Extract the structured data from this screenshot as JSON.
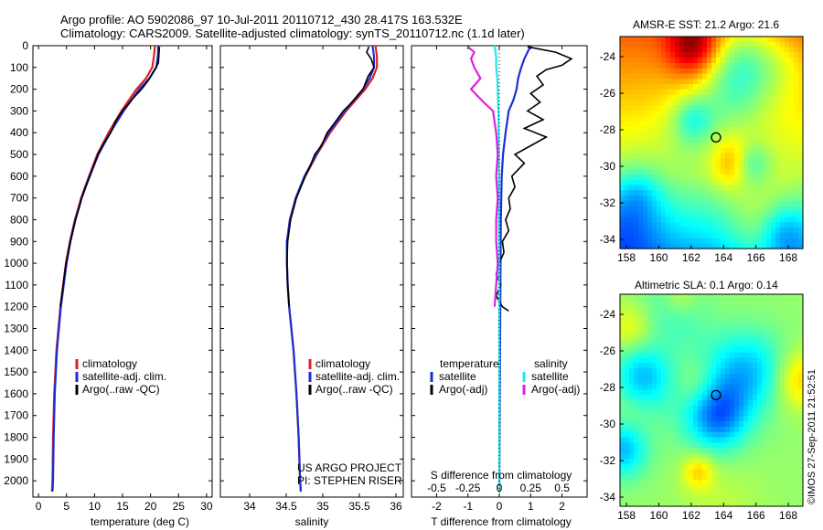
{
  "header": {
    "line1": "Argo profile: AO 5902086_97 10-Jul-2011 20110712_430 28.417S 163.532E",
    "line2": "Climatology: CARS2009. Satellite-adjusted climatology: synTS_20110712.nc (1.1d later)"
  },
  "colors": {
    "climatology": "#e02020",
    "satellite": "#1a2fd8",
    "argo": "#000000",
    "sat_salinity": "#22e6e6",
    "argo_salinity": "#e020e0"
  },
  "chart_data": [
    {
      "type": "line",
      "name": "temperature-profile",
      "xlabel": "temperature (deg C)",
      "ylabel": "",
      "xlim": [
        -1,
        31
      ],
      "ylim": [
        2075,
        0
      ],
      "xticks": [
        0,
        5,
        10,
        15,
        20,
        25,
        30
      ],
      "yticks": [
        0,
        100,
        200,
        300,
        400,
        500,
        600,
        700,
        800,
        900,
        1000,
        1100,
        1200,
        1300,
        1400,
        1500,
        1600,
        1700,
        1800,
        1900,
        2000
      ],
      "legend": [
        "climatology",
        "satellite-adj. clim.",
        "Argo(..raw -QC)"
      ],
      "legend_position": "lower-right",
      "series": [
        {
          "name": "climatology",
          "color_key": "climatology",
          "y": [
            0,
            50,
            100,
            150,
            200,
            300,
            400,
            500,
            600,
            700,
            800,
            900,
            1000,
            1200,
            1400,
            1600,
            1800,
            2000,
            2050
          ],
          "x": [
            20.8,
            20.6,
            20.3,
            19.2,
            17.5,
            14.8,
            12.5,
            10.5,
            9.0,
            7.6,
            6.5,
            5.6,
            4.9,
            3.9,
            3.2,
            2.8,
            2.6,
            2.5,
            2.4
          ]
        },
        {
          "name": "satellite-adj. clim.",
          "color_key": "satellite",
          "y": [
            0,
            50,
            100,
            150,
            200,
            300,
            400,
            500,
            600,
            700,
            800,
            900,
            1000,
            1200,
            1400,
            1600,
            1800,
            2000,
            2050
          ],
          "x": [
            21.4,
            21.3,
            21.0,
            19.8,
            18.0,
            15.2,
            12.8,
            10.7,
            9.1,
            7.7,
            6.6,
            5.7,
            5.0,
            4.0,
            3.3,
            2.9,
            2.7,
            2.6,
            2.5
          ]
        },
        {
          "name": "Argo(..raw -QC)",
          "color_key": "argo",
          "y": [
            5,
            40,
            80,
            120,
            160,
            200,
            250,
            300,
            350,
            400,
            450,
            500,
            550,
            600,
            650,
            700,
            750,
            800,
            900,
            1000,
            1100,
            1200
          ],
          "x": [
            21.6,
            21.5,
            21.4,
            20.5,
            19.6,
            18.4,
            16.6,
            15.0,
            13.7,
            12.9,
            11.6,
            10.6,
            9.9,
            9.2,
            8.4,
            7.7,
            7.2,
            6.6,
            5.7,
            4.9,
            4.4,
            3.9
          ]
        }
      ]
    },
    {
      "type": "line",
      "name": "salinity-profile",
      "xlabel": "salinity",
      "ylabel": "",
      "xlim": [
        33.6,
        36.1
      ],
      "ylim": [
        2075,
        0
      ],
      "xticks": [
        34,
        34.5,
        35,
        35.5,
        36
      ],
      "legend": [
        "climatology",
        "satellite-adj. clim.",
        "Argo(..raw -QC)"
      ],
      "legend_position": "lower-right",
      "annotation": [
        "US ARGO PROJECT",
        "PI: STEPHEN RISER"
      ],
      "series": [
        {
          "name": "climatology",
          "color_key": "climatology",
          "y": [
            0,
            50,
            100,
            150,
            200,
            300,
            400,
            500,
            600,
            700,
            800,
            900,
            1000,
            1100,
            1200,
            1300,
            1400,
            1600,
            1800,
            2000,
            2050
          ],
          "x": [
            35.72,
            35.74,
            35.74,
            35.68,
            35.58,
            35.32,
            35.1,
            34.92,
            34.76,
            34.63,
            34.55,
            34.51,
            34.51,
            34.52,
            34.54,
            34.57,
            34.6,
            34.64,
            34.67,
            34.69,
            34.7
          ]
        },
        {
          "name": "satellite-adj. clim.",
          "color_key": "satellite",
          "y": [
            0,
            50,
            100,
            150,
            200,
            300,
            400,
            500,
            600,
            700,
            800,
            900,
            1000,
            1100,
            1200,
            1300,
            1400,
            1600,
            1800,
            2000,
            2050
          ],
          "x": [
            35.68,
            35.7,
            35.7,
            35.64,
            35.55,
            35.3,
            35.08,
            34.91,
            34.75,
            34.63,
            34.55,
            34.51,
            34.51,
            34.52,
            34.54,
            34.57,
            34.6,
            34.64,
            34.67,
            34.69,
            34.7
          ]
        },
        {
          "name": "Argo(..raw -QC)",
          "color_key": "argo",
          "y": [
            5,
            30,
            60,
            100,
            140,
            200,
            260,
            300,
            360,
            400,
            460,
            500,
            560,
            600,
            650,
            700,
            800,
            900,
            1000,
            1100,
            1200
          ],
          "x": [
            35.63,
            35.6,
            35.66,
            35.7,
            35.62,
            35.55,
            35.4,
            35.28,
            35.15,
            35.06,
            34.98,
            34.89,
            34.82,
            34.76,
            34.7,
            34.64,
            34.56,
            34.52,
            34.51,
            34.52,
            34.54
          ]
        }
      ]
    },
    {
      "type": "line",
      "name": "difference-profile",
      "xlabel": "T difference from climatology",
      "xlabel2": "S difference from climatology",
      "xlim": [
        -2.8,
        2.8
      ],
      "ylim": [
        2075,
        0
      ],
      "xticks": [
        -2,
        -1,
        0,
        1,
        2
      ],
      "xticks2_labels": [
        "-0.5",
        "-0.25",
        "0",
        "0.25",
        "0.5"
      ],
      "xticks2_positions": [
        -2,
        -1,
        0,
        1,
        2
      ],
      "legend_headers": [
        "temperature",
        "salinity"
      ],
      "legend": [
        "satellite",
        "Argo(-adj)",
        "satellite",
        "Argo(-adj)"
      ],
      "series": [
        {
          "name": "temperature satellite",
          "color_key": "satellite",
          "y": [
            0,
            30,
            60,
            100,
            150,
            200,
            250,
            300,
            400,
            500,
            600,
            800,
            1000,
            1500,
            2050
          ],
          "x": [
            1.0,
            0.9,
            0.8,
            0.7,
            0.6,
            0.55,
            0.45,
            0.3,
            0.2,
            0.12,
            0.08,
            0.05,
            0.04,
            0.02,
            0.0
          ]
        },
        {
          "name": "temperature Argo(-adj)",
          "color_key": "argo",
          "y": [
            5,
            30,
            60,
            90,
            110,
            140,
            180,
            220,
            260,
            300,
            340,
            380,
            420,
            460,
            500,
            540,
            600,
            650,
            700,
            750,
            800,
            850,
            900,
            950,
            1000,
            1050,
            1100,
            1150,
            1200,
            1220
          ],
          "x": [
            0.9,
            1.8,
            2.3,
            2.0,
            1.5,
            1.2,
            1.4,
            1.0,
            1.3,
            0.9,
            1.4,
            0.8,
            1.5,
            1.0,
            0.5,
            0.8,
            0.4,
            0.5,
            0.3,
            0.35,
            0.2,
            0.3,
            0.1,
            0.15,
            0.0,
            -0.1,
            0.05,
            -0.1,
            0.1,
            0.3
          ]
        },
        {
          "name": "salinity satellite",
          "color_key": "sat_salinity",
          "y": [
            0,
            50,
            100,
            150,
            200,
            300,
            400,
            600,
            800,
            1000,
            1500,
            2050
          ],
          "x": [
            -0.15,
            -0.1,
            -0.1,
            -0.06,
            -0.05,
            -0.03,
            -0.02,
            -0.01,
            -0.01,
            0.0,
            0.0,
            0.0
          ]
        },
        {
          "name": "salinity Argo(-adj)",
          "color_key": "argo_salinity",
          "y": [
            5,
            30,
            60,
            100,
            150,
            200,
            260,
            300,
            400,
            500,
            600,
            700,
            800,
            900,
            1000,
            1100,
            1200
          ],
          "x": [
            -1.0,
            -0.8,
            -0.9,
            -0.8,
            -0.6,
            -0.9,
            -0.5,
            -0.2,
            -0.1,
            -0.05,
            -0.1,
            -0.05,
            -0.1,
            -0.1,
            -0.05,
            -0.1,
            -0.15
          ]
        }
      ]
    },
    {
      "type": "heatmap",
      "name": "sst-map",
      "title": "AMSR-E SST: 21.2  Argo: 21.6",
      "xlim": [
        157.6,
        168.9
      ],
      "ylim": [
        -34.5,
        -22.9
      ],
      "xticks": [
        158,
        160,
        162,
        164,
        166,
        168
      ],
      "yticks": [
        -24,
        -26,
        -28,
        -30,
        -32,
        -34
      ],
      "marker": {
        "lon": 163.532,
        "lat": -28.417
      }
    },
    {
      "type": "heatmap",
      "name": "sla-map",
      "title": "Altimetric SLA: 0.1  Argo: 0.14",
      "xlim": [
        157.6,
        168.9
      ],
      "ylim": [
        -34.5,
        -22.9
      ],
      "xticks": [
        158,
        160,
        162,
        164,
        166,
        168
      ],
      "yticks": [
        -24,
        -26,
        -28,
        -30,
        -32,
        -34
      ],
      "marker": {
        "lon": 163.532,
        "lat": -28.417
      }
    }
  ],
  "footer": {
    "timestamp": "©IMOS 27-Sep-2011 21:52:51"
  }
}
